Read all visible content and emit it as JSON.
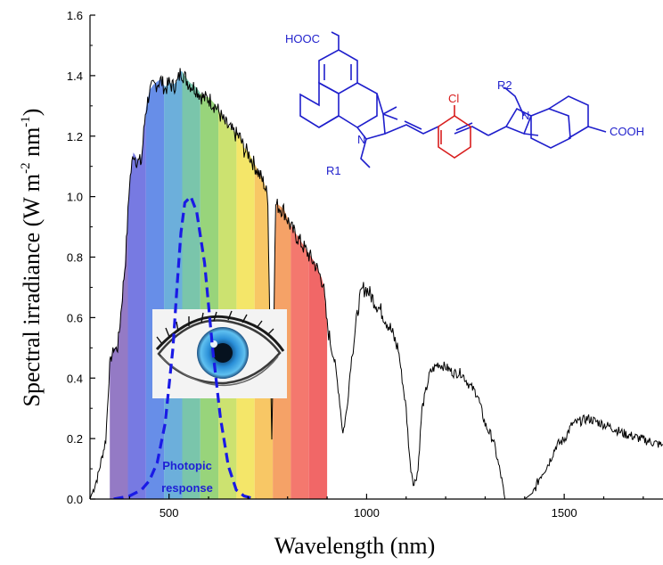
{
  "chart_data": {
    "type": "line",
    "xlabel": "Wavelength (nm)",
    "ylabel": "Spectral irradiance (W m-2 nm-1)",
    "ylabel_parts": {
      "main": "Spectral irradiance (W m",
      "exp1": "-2",
      "mid": " nm",
      "exp2": "-1",
      "end": ")"
    },
    "xlim": [
      300,
      1750
    ],
    "ylim": [
      0.0,
      1.6
    ],
    "x_ticks": [
      500,
      1000,
      1500
    ],
    "x_tick_labels": [
      "500",
      "1000",
      "1500"
    ],
    "y_ticks": [
      0.0,
      0.2,
      0.4,
      0.6,
      0.8,
      1.0,
      1.2,
      1.4,
      1.6
    ],
    "y_tick_labels": [
      "0.0",
      "0.2",
      "0.4",
      "0.6",
      "0.8",
      "1.0",
      "1.2",
      "1.4",
      "1.6"
    ],
    "grid": false,
    "series": [
      {
        "name": "",
        "color": "#000000",
        "x": [
          300,
          320,
          340,
          350,
          360,
          370,
          380,
          390,
          400,
          410,
          420,
          430,
          440,
          450,
          460,
          470,
          480,
          490,
          500,
          510,
          520,
          530,
          540,
          550,
          560,
          570,
          580,
          590,
          600,
          620,
          640,
          660,
          680,
          690,
          700,
          720,
          740,
          750,
          760,
          770,
          790,
          810,
          830,
          850,
          870,
          890,
          900,
          920,
          930,
          940,
          950,
          960,
          970,
          980,
          990,
          1000,
          1020,
          1040,
          1060,
          1080,
          1100,
          1110,
          1120,
          1130,
          1140,
          1160,
          1180,
          1200,
          1220,
          1240,
          1260,
          1280,
          1300,
          1320,
          1340,
          1350,
          1360,
          1380,
          1400,
          1420,
          1440,
          1460,
          1480,
          1500,
          1520,
          1540,
          1560,
          1580,
          1600,
          1620,
          1650,
          1700,
          1750
        ],
        "y": [
          0.0,
          0.08,
          0.2,
          0.45,
          0.5,
          0.5,
          0.65,
          0.8,
          1.05,
          1.15,
          1.12,
          1.12,
          1.28,
          1.35,
          1.37,
          1.38,
          1.39,
          1.36,
          1.38,
          1.37,
          1.38,
          1.42,
          1.4,
          1.38,
          1.37,
          1.36,
          1.34,
          1.33,
          1.33,
          1.3,
          1.25,
          1.22,
          1.2,
          1.16,
          1.15,
          1.1,
          1.05,
          1.0,
          0.2,
          0.98,
          0.96,
          0.9,
          0.86,
          0.82,
          0.78,
          0.72,
          0.58,
          0.45,
          0.35,
          0.22,
          0.3,
          0.45,
          0.55,
          0.65,
          0.7,
          0.7,
          0.66,
          0.62,
          0.57,
          0.5,
          0.3,
          0.12,
          0.05,
          0.1,
          0.3,
          0.42,
          0.45,
          0.44,
          0.42,
          0.42,
          0.38,
          0.35,
          0.25,
          0.2,
          0.08,
          0.0,
          0.0,
          0.0,
          0.0,
          0.02,
          0.08,
          0.12,
          0.18,
          0.2,
          0.25,
          0.26,
          0.27,
          0.26,
          0.25,
          0.24,
          0.22,
          0.2,
          0.18
        ]
      },
      {
        "name": "Photopic response",
        "color": "#1a1ae6",
        "style": "dashed",
        "x": [
          360,
          400,
          430,
          450,
          470,
          490,
          510,
          520,
          530,
          540,
          555,
          570,
          590,
          610,
          630,
          650,
          670,
          690,
          720
        ],
        "y": [
          0.0,
          0.01,
          0.03,
          0.06,
          0.12,
          0.25,
          0.5,
          0.7,
          0.88,
          0.98,
          1.0,
          0.95,
          0.78,
          0.5,
          0.27,
          0.11,
          0.03,
          0.01,
          0.0
        ]
      }
    ],
    "annotations": [
      {
        "text_lines": [
          "Photopic",
          "response"
        ],
        "color": "#1a1ae6"
      }
    ],
    "visible_band": {
      "x_range": [
        350,
        900
      ],
      "colors": [
        "#8b6fc0",
        "#6b6fe0",
        "#5a84e6",
        "#5fa8d8",
        "#6fc0a4",
        "#8fd070",
        "#c8e064",
        "#f3e45c",
        "#f7c258",
        "#f49a5a",
        "#f36d62",
        "#f05a5a"
      ]
    }
  },
  "molecule": {
    "groups": [
      "HOOC",
      "COOH",
      "Cl",
      "N",
      "N",
      "R1",
      "R2"
    ],
    "colors": {
      "main": "#1f1fcc",
      "accent": "#d81e1e"
    }
  },
  "eye_image": {
    "icon": "eye-icon"
  }
}
